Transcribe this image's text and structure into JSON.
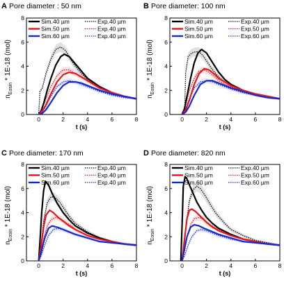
{
  "chart_data": [
    {
      "type": "line",
      "panel_letter": "A",
      "title": "Pore diameter : 50 nm",
      "xlabel": "t (s)",
      "ylabel_main": "n",
      "ylabel_sub": "Eosin",
      "ylabel_rest": " * 1E-18 (mol)",
      "xlim": [
        -1,
        8
      ],
      "ylim": [
        0,
        8
      ],
      "xticks": [
        0,
        2,
        4,
        6,
        8
      ],
      "yticks": [
        0,
        2,
        4,
        6,
        8
      ],
      "legend_position": "top",
      "series": [
        {
          "name": "Sim.40 µm",
          "style": "solid",
          "color": "#000000",
          "x": [
            0,
            0.2,
            0.4,
            0.7,
            1,
            1.4,
            1.8,
            2.1,
            2.5,
            3,
            3.5,
            4,
            5,
            6,
            7,
            8
          ],
          "y": [
            0,
            0.3,
            0.9,
            2.0,
            3.0,
            4.1,
            4.8,
            5.0,
            4.8,
            4.2,
            3.6,
            3.0,
            2.3,
            1.8,
            1.5,
            1.3
          ]
        },
        {
          "name": "Sim.50 µm",
          "style": "solid",
          "color": "#e8141b",
          "x": [
            0,
            0.3,
            0.6,
            1,
            1.5,
            2,
            2.5,
            3,
            3.5,
            4,
            5,
            6,
            7,
            8
          ],
          "y": [
            0,
            0.3,
            0.8,
            1.7,
            2.7,
            3.3,
            3.5,
            3.4,
            3.1,
            2.8,
            2.2,
            1.8,
            1.5,
            1.3
          ]
        },
        {
          "name": "Sim.60 µm",
          "style": "solid",
          "color": "#1428d2",
          "x": [
            0,
            0.3,
            0.6,
            1,
            1.5,
            2,
            2.5,
            3,
            3.5,
            4,
            5,
            6,
            7,
            8
          ],
          "y": [
            0,
            0.1,
            0.4,
            1.0,
            1.8,
            2.4,
            2.7,
            2.7,
            2.6,
            2.4,
            2.0,
            1.7,
            1.5,
            1.3
          ]
        },
        {
          "name": "Exp.40 µm",
          "style": "dotted",
          "color": "#000000",
          "x": [
            -0.2,
            0,
            0.1,
            0.3,
            0.6,
            1,
            1.4,
            1.8,
            2.2,
            2.6,
            3,
            3.5,
            4,
            5,
            6,
            7,
            8
          ],
          "y": [
            0,
            0,
            1.9,
            2.2,
            3.4,
            4.6,
            5.4,
            5.6,
            5.3,
            4.6,
            4.0,
            3.4,
            2.9,
            2.2,
            1.8,
            1.5,
            1.3
          ]
        },
        {
          "name": "Exp.40 µm",
          "style": "dotted",
          "color": "#e8141b",
          "x": [
            0,
            0.3,
            0.6,
            1,
            1.5,
            2,
            2.5,
            3,
            3.5,
            4,
            5,
            6,
            7,
            8
          ],
          "y": [
            0,
            0.5,
            1.3,
            2.3,
            3.2,
            3.7,
            3.7,
            3.4,
            3.1,
            2.8,
            2.2,
            1.8,
            1.5,
            1.3
          ]
        },
        {
          "name": "Exp.40 µm",
          "style": "dotted",
          "color": "#1428d2",
          "x": [
            0,
            0.3,
            0.6,
            1,
            1.5,
            2,
            2.5,
            3,
            3.5,
            4,
            5,
            6,
            7,
            8
          ],
          "y": [
            0,
            0.2,
            0.7,
            1.5,
            2.3,
            2.7,
            2.8,
            2.7,
            2.5,
            2.3,
            1.9,
            1.6,
            1.4,
            1.3
          ]
        }
      ]
    },
    {
      "type": "line",
      "panel_letter": "B",
      "title": "Pore diameter: 100 nm",
      "xlabel": "t (s)",
      "ylabel_main": "n",
      "ylabel_sub": "Eosin",
      "ylabel_rest": " * 1E-18 (mol)",
      "xlim": [
        -1,
        8
      ],
      "ylim": [
        0,
        8
      ],
      "xticks": [
        0,
        2,
        4,
        6,
        8
      ],
      "yticks": [
        0,
        2,
        4,
        6,
        8
      ],
      "legend_position": "top",
      "series": [
        {
          "name": "Sim.40 µm",
          "style": "solid",
          "color": "#000000",
          "x": [
            0,
            0.2,
            0.4,
            0.7,
            1,
            1.3,
            1.6,
            2,
            2.5,
            3,
            3.5,
            4,
            5,
            6,
            7,
            8
          ],
          "y": [
            0,
            0.5,
            1.5,
            3.0,
            4.3,
            5.1,
            5.4,
            5.1,
            4.3,
            3.5,
            2.9,
            2.5,
            2.0,
            1.7,
            1.5,
            1.3
          ]
        },
        {
          "name": "Sim.50 µm",
          "style": "solid",
          "color": "#e8141b",
          "x": [
            0,
            0.3,
            0.6,
            1,
            1.4,
            1.8,
            2.2,
            2.7,
            3,
            3.5,
            4,
            5,
            6,
            7,
            8
          ],
          "y": [
            0,
            0.4,
            1.2,
            2.5,
            3.4,
            3.8,
            3.7,
            3.3,
            3.0,
            2.7,
            2.4,
            2.0,
            1.7,
            1.5,
            1.3
          ]
        },
        {
          "name": "Sim.60 µm",
          "style": "solid",
          "color": "#1428d2",
          "x": [
            0,
            0.3,
            0.6,
            1,
            1.5,
            2,
            2.5,
            3,
            3.5,
            4,
            5,
            6,
            7,
            8
          ],
          "y": [
            0,
            0.2,
            0.7,
            1.6,
            2.5,
            2.8,
            2.8,
            2.6,
            2.4,
            2.2,
            1.9,
            1.6,
            1.4,
            1.3
          ]
        },
        {
          "name": "Exp.40 µm",
          "style": "dotted",
          "color": "#000000",
          "x": [
            -0.2,
            0.2,
            0.3,
            0.5,
            0.8,
            1.1,
            1.4,
            1.7,
            2.1,
            2.5,
            3,
            3.5,
            4,
            5,
            6,
            7,
            8
          ],
          "y": [
            0,
            0,
            3.5,
            4.8,
            5.1,
            5.2,
            5.2,
            4.9,
            4.3,
            3.7,
            3.1,
            2.7,
            2.4,
            1.9,
            1.7,
            1.5,
            1.3
          ]
        },
        {
          "name": "Exp.50 µm",
          "style": "dotted",
          "color": "#e8141b",
          "x": [
            0,
            0.3,
            0.6,
            1,
            1.4,
            1.8,
            2.2,
            2.7,
            3,
            3.5,
            4,
            5,
            6,
            7,
            8
          ],
          "y": [
            0,
            0.8,
            2.0,
            3.0,
            3.6,
            3.7,
            3.5,
            3.1,
            2.8,
            2.5,
            2.3,
            1.9,
            1.6,
            1.4,
            1.3
          ]
        },
        {
          "name": "Exp.60 µm",
          "style": "dotted",
          "color": "#1428d2",
          "x": [
            0,
            0.3,
            0.6,
            1,
            1.5,
            2,
            2.5,
            3,
            3.5,
            4,
            5,
            6,
            7,
            8
          ],
          "y": [
            0,
            0.5,
            1.3,
            2.2,
            2.7,
            2.8,
            2.7,
            2.5,
            2.3,
            2.1,
            1.8,
            1.6,
            1.4,
            1.3
          ]
        }
      ]
    },
    {
      "type": "line",
      "panel_letter": "C",
      "title": "Pore diameter: 170 nm",
      "xlabel": "t (s)",
      "ylabel_main": "n",
      "ylabel_sub": "Eosin",
      "ylabel_rest": " * 1E-18 (mol)",
      "xlim": [
        -1,
        8
      ],
      "ylim": [
        0,
        8
      ],
      "xticks": [
        0,
        2,
        4,
        6,
        8
      ],
      "yticks": [
        0,
        2,
        4,
        6,
        8
      ],
      "legend_position": "top",
      "series": [
        {
          "name": "Sim.40 µm",
          "style": "solid",
          "color": "#000000",
          "x": [
            0,
            0.1,
            0.25,
            0.4,
            0.55,
            0.8,
            1.1,
            1.5,
            2,
            2.5,
            3,
            4,
            5,
            6,
            7,
            8
          ],
          "y": [
            0,
            1.5,
            4.0,
            5.8,
            6.6,
            6.3,
            5.6,
            4.8,
            4.0,
            3.4,
            2.9,
            2.3,
            1.9,
            1.6,
            1.4,
            1.3
          ]
        },
        {
          "name": "Sim.50 µm",
          "style": "solid",
          "color": "#e8141b",
          "x": [
            0,
            0.2,
            0.4,
            0.6,
            0.9,
            1.2,
            1.6,
            2,
            2.5,
            3,
            4,
            5,
            6,
            7,
            8
          ],
          "y": [
            0,
            1.2,
            2.8,
            3.8,
            4.2,
            4.0,
            3.6,
            3.3,
            2.9,
            2.6,
            2.1,
            1.8,
            1.6,
            1.4,
            1.3
          ]
        },
        {
          "name": "Sim.60 µm",
          "style": "solid",
          "color": "#1428d2",
          "x": [
            0,
            0.2,
            0.5,
            0.8,
            1.1,
            1.5,
            2,
            2.5,
            3,
            4,
            5,
            6,
            7,
            8
          ],
          "y": [
            0,
            0.7,
            1.9,
            2.7,
            2.9,
            2.8,
            2.6,
            2.4,
            2.2,
            1.9,
            1.6,
            1.5,
            1.4,
            1.3
          ]
        },
        {
          "name": "Exp.40 µm",
          "style": "dotted",
          "color": "#000000",
          "x": [
            0,
            0.2,
            0.4,
            0.7,
            1,
            1.3,
            1.7,
            2.1,
            2.5,
            3,
            4,
            5,
            6,
            7,
            8
          ],
          "y": [
            0,
            1.3,
            3.3,
            4.8,
            5.3,
            5.3,
            4.9,
            4.3,
            3.7,
            3.1,
            2.4,
            1.9,
            1.6,
            1.4,
            1.3
          ]
        },
        {
          "name": "Exp.40 µm",
          "style": "dotted",
          "color": "#e8141b",
          "x": [
            0,
            0.2,
            0.4,
            0.7,
            1,
            1.4,
            1.8,
            2.2,
            2.7,
            3,
            4,
            5,
            6,
            7,
            8
          ],
          "y": [
            0,
            0.6,
            1.8,
            2.9,
            3.4,
            3.6,
            3.5,
            3.2,
            2.9,
            2.6,
            2.1,
            1.8,
            1.6,
            1.4,
            1.3
          ]
        },
        {
          "name": "Exp.40 µm",
          "style": "dotted",
          "color": "#1428d2",
          "x": [
            0,
            0.2,
            0.5,
            0.8,
            1.2,
            1.6,
            2,
            2.5,
            3,
            4,
            5,
            6,
            7,
            8
          ],
          "y": [
            0,
            0.4,
            1.3,
            2.1,
            2.6,
            2.7,
            2.6,
            2.4,
            2.2,
            1.9,
            1.6,
            1.5,
            1.4,
            1.3
          ]
        }
      ]
    },
    {
      "type": "line",
      "panel_letter": "D",
      "title": "Pore diameter: 820 nm",
      "xlabel": "t (s)",
      "ylabel_main": "n",
      "ylabel_sub": "Eosin",
      "ylabel_rest": " * 1E-18 (mol)",
      "xlim": [
        -1,
        8
      ],
      "ylim": [
        0,
        8
      ],
      "xticks": [
        0,
        2,
        4,
        6,
        8
      ],
      "yticks": [
        0,
        2,
        4,
        6,
        8
      ],
      "legend_position": "top",
      "series": [
        {
          "name": "Sim.40 µm",
          "style": "solid",
          "color": "#000000",
          "x": [
            -0.1,
            0,
            0.1,
            0.25,
            0.4,
            0.6,
            0.9,
            1.2,
            1.6,
            2,
            2.5,
            3,
            4,
            5,
            6,
            7,
            8
          ],
          "y": [
            0,
            3.0,
            6.2,
            7.0,
            6.8,
            6.3,
            5.6,
            4.9,
            4.2,
            3.6,
            3.1,
            2.7,
            2.2,
            1.8,
            1.6,
            1.4,
            1.3
          ]
        },
        {
          "name": "Sim.50 µm",
          "style": "solid",
          "color": "#e8141b",
          "x": [
            0,
            0.2,
            0.4,
            0.6,
            0.8,
            1.1,
            1.5,
            2,
            2.5,
            3,
            4,
            5,
            6,
            7,
            8
          ],
          "y": [
            0,
            1.8,
            3.5,
            4.2,
            4.3,
            4.1,
            3.7,
            3.2,
            2.8,
            2.5,
            2.1,
            1.8,
            1.6,
            1.4,
            1.3
          ]
        },
        {
          "name": "Sim.60 µm",
          "style": "solid",
          "color": "#1428d2",
          "x": [
            0,
            0.2,
            0.4,
            0.7,
            1,
            1.4,
            1.8,
            2.3,
            3,
            4,
            5,
            6,
            7,
            8
          ],
          "y": [
            0,
            1.0,
            2.0,
            2.8,
            3.0,
            2.9,
            2.7,
            2.5,
            2.2,
            1.9,
            1.6,
            1.5,
            1.4,
            1.3
          ]
        },
        {
          "name": "Exp.40 µm",
          "style": "dotted",
          "color": "#000000",
          "x": [
            0,
            0.2,
            0.4,
            0.6,
            0.9,
            1.2,
            1.5,
            1.9,
            2.3,
            2.8,
            3.5,
            4,
            5,
            6,
            7,
            8
          ],
          "y": [
            0,
            1.5,
            3.5,
            5.0,
            5.9,
            6.2,
            6.0,
            5.4,
            4.7,
            3.9,
            3.1,
            2.6,
            2.1,
            1.7,
            1.5,
            1.3
          ]
        },
        {
          "name": "Exp.50 µm",
          "style": "dotted",
          "color": "#e8141b",
          "x": [
            0,
            0.2,
            0.4,
            0.7,
            1,
            1.4,
            1.8,
            2.3,
            3,
            4,
            5,
            6,
            7,
            8
          ],
          "y": [
            0,
            0.8,
            2.0,
            3.0,
            3.5,
            3.6,
            3.4,
            3.0,
            2.6,
            2.1,
            1.8,
            1.6,
            1.4,
            1.3
          ]
        },
        {
          "name": "Exp.60 µm",
          "style": "dotted",
          "color": "#1428d2",
          "x": [
            0,
            0.2,
            0.5,
            0.8,
            1.2,
            1.6,
            2,
            2.5,
            3,
            4,
            5,
            6,
            7,
            8
          ],
          "y": [
            0,
            0.4,
            1.3,
            2.0,
            2.5,
            2.6,
            2.5,
            2.3,
            2.1,
            1.8,
            1.6,
            1.5,
            1.4,
            1.3
          ]
        }
      ]
    }
  ]
}
